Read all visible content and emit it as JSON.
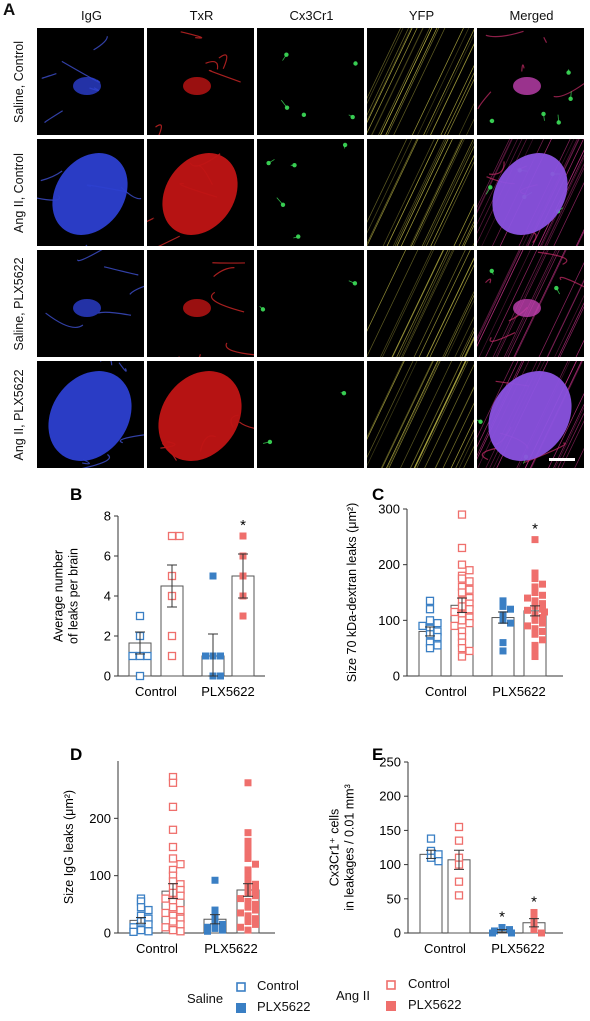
{
  "panel_a": {
    "letter": "A",
    "columns": [
      {
        "label": "IgG",
        "color": "#4466dd"
      },
      {
        "label": "TxR",
        "color": "#dd2222"
      },
      {
        "label": "Cx3Cr1",
        "color": "#22aa33"
      },
      {
        "label": "YFP",
        "color": "#dd8822"
      },
      {
        "label": "Merged",
        "color": "#111111"
      }
    ],
    "rows": [
      "Saline, Control",
      "Ang II, Control",
      "Saline, PLX5622",
      "Ang II, PLX5622"
    ],
    "scale_bar": true
  },
  "colors": {
    "saline": "#3a7fc4",
    "angii": "#ef6f6c",
    "bar": "#555555"
  },
  "legend": {
    "saline_label": "Saline",
    "angii_label": "Ang II",
    "saline_control": "Control",
    "saline_plx": "PLX5622",
    "angii_control": "Control",
    "angii_plx": "PLX5622"
  },
  "chart_data": [
    {
      "letter": "B",
      "type": "bar",
      "ylabel": [
        "Average number",
        "of leaks per brain"
      ],
      "ylim": [
        0,
        8
      ],
      "yticks": [
        0,
        2,
        4,
        6,
        8
      ],
      "groups": [
        "Control",
        "PLX5622"
      ],
      "bars": [
        {
          "group": "Control",
          "condition": "Saline",
          "mean": 1.65,
          "sem": 0.55,
          "points": [
            3,
            1,
            1,
            1,
            0,
            2
          ]
        },
        {
          "group": "Control",
          "condition": "Ang II",
          "mean": 4.5,
          "sem": 1.05,
          "points": [
            7,
            7,
            5,
            4,
            1,
            2
          ]
        },
        {
          "group": "PLX5622",
          "condition": "Saline",
          "mean": 1.0,
          "sem": 1.1,
          "points": [
            5,
            1,
            1,
            0,
            0,
            1
          ]
        },
        {
          "group": "PLX5622",
          "condition": "Ang II",
          "mean": 5.0,
          "sem": 1.1,
          "points": [
            7,
            6,
            5,
            3,
            4
          ]
        }
      ],
      "significance": [
        {
          "bar": 3,
          "label": "*"
        }
      ]
    },
    {
      "letter": "C",
      "type": "bar",
      "ylabel": [
        "Size 70 kDa-dextran leaks (μm²)"
      ],
      "ylim": [
        0,
        300
      ],
      "yticks": [
        0,
        100,
        200,
        300
      ],
      "groups": [
        "Control",
        "PLX5622"
      ],
      "bars": [
        {
          "group": "Control",
          "condition": "Saline",
          "mean": 80,
          "sem": 8,
          "points": [
            135,
            120,
            100,
            95,
            90,
            85,
            80,
            75,
            70,
            60,
            55,
            50
          ]
        },
        {
          "group": "Control",
          "condition": "Ang II",
          "mean": 127,
          "sem": 13,
          "points": [
            290,
            230,
            200,
            190,
            180,
            175,
            170,
            160,
            155,
            150,
            140,
            135,
            130,
            125,
            120,
            115,
            110,
            105,
            100,
            95,
            90,
            80,
            70,
            60,
            50,
            45,
            35
          ]
        },
        {
          "group": "PLX5622",
          "condition": "Saline",
          "mean": 105,
          "sem": 10,
          "points": [
            135,
            125,
            120,
            110,
            100,
            95,
            60,
            45
          ]
        },
        {
          "group": "PLX5622",
          "condition": "Ang II",
          "mean": 117,
          "sem": 9,
          "points": [
            245,
            185,
            175,
            165,
            160,
            150,
            145,
            140,
            135,
            130,
            125,
            120,
            118,
            115,
            110,
            105,
            100,
            95,
            90,
            85,
            80,
            75,
            65,
            55,
            45,
            35
          ]
        }
      ],
      "significance": [
        {
          "bar": 3,
          "label": "*"
        }
      ]
    },
    {
      "letter": "D",
      "type": "bar",
      "ylabel": [
        "Size IgG leaks (μm²)"
      ],
      "ylim": [
        0,
        300
      ],
      "yticks": [
        0,
        100,
        200
      ],
      "groups": [
        "Control",
        "PLX5622"
      ],
      "bars": [
        {
          "group": "Control",
          "condition": "Saline",
          "mean": 22,
          "sem": 5,
          "points": [
            60,
            55,
            45,
            40,
            30,
            25,
            20,
            15,
            10,
            5,
            3,
            2
          ]
        },
        {
          "group": "Control",
          "condition": "Ang II",
          "mean": 73,
          "sem": 13,
          "points": [
            272,
            262,
            220,
            180,
            150,
            130,
            120,
            110,
            100,
            90,
            85,
            80,
            75,
            70,
            65,
            60,
            55,
            45,
            40,
            35,
            30,
            25,
            20,
            15,
            10,
            5,
            3
          ]
        },
        {
          "group": "PLX5622",
          "condition": "Saline",
          "mean": 24,
          "sem": 8,
          "points": [
            92,
            40,
            30,
            20,
            15,
            10,
            8,
            5,
            3
          ]
        },
        {
          "group": "PLX5622",
          "condition": "Ang II",
          "mean": 75,
          "sem": 11,
          "points": [
            262,
            175,
            160,
            150,
            140,
            130,
            120,
            110,
            100,
            90,
            85,
            80,
            75,
            70,
            65,
            60,
            55,
            50,
            45,
            40,
            35,
            30,
            25,
            20,
            15,
            10,
            5
          ]
        }
      ],
      "significance": []
    },
    {
      "letter": "E",
      "type": "bar",
      "ylabel": [
        "Cx3Cr1⁺ cells",
        "in leakages / 0.01 mm³"
      ],
      "ylim": [
        0,
        250
      ],
      "yticks": [
        0,
        50,
        100,
        150,
        200,
        250
      ],
      "groups": [
        "Control",
        "PLX5622"
      ],
      "bars": [
        {
          "group": "Control",
          "condition": "Saline",
          "mean": 115,
          "sem": 6,
          "points": [
            138,
            120,
            115,
            110,
            105
          ]
        },
        {
          "group": "Control",
          "condition": "Ang II",
          "mean": 107,
          "sem": 14,
          "points": [
            155,
            135,
            110,
            100,
            75,
            55
          ]
        },
        {
          "group": "PLX5622",
          "condition": "Saline",
          "mean": 3,
          "sem": 2,
          "points": [
            8,
            5,
            3,
            0,
            0
          ]
        },
        {
          "group": "PLX5622",
          "condition": "Ang II",
          "mean": 15,
          "sem": 6,
          "points": [
            30,
            20,
            15,
            5,
            0
          ]
        }
      ],
      "significance": [
        {
          "bar": 2,
          "label": "*"
        },
        {
          "bar": 3,
          "label": "*"
        }
      ]
    }
  ]
}
